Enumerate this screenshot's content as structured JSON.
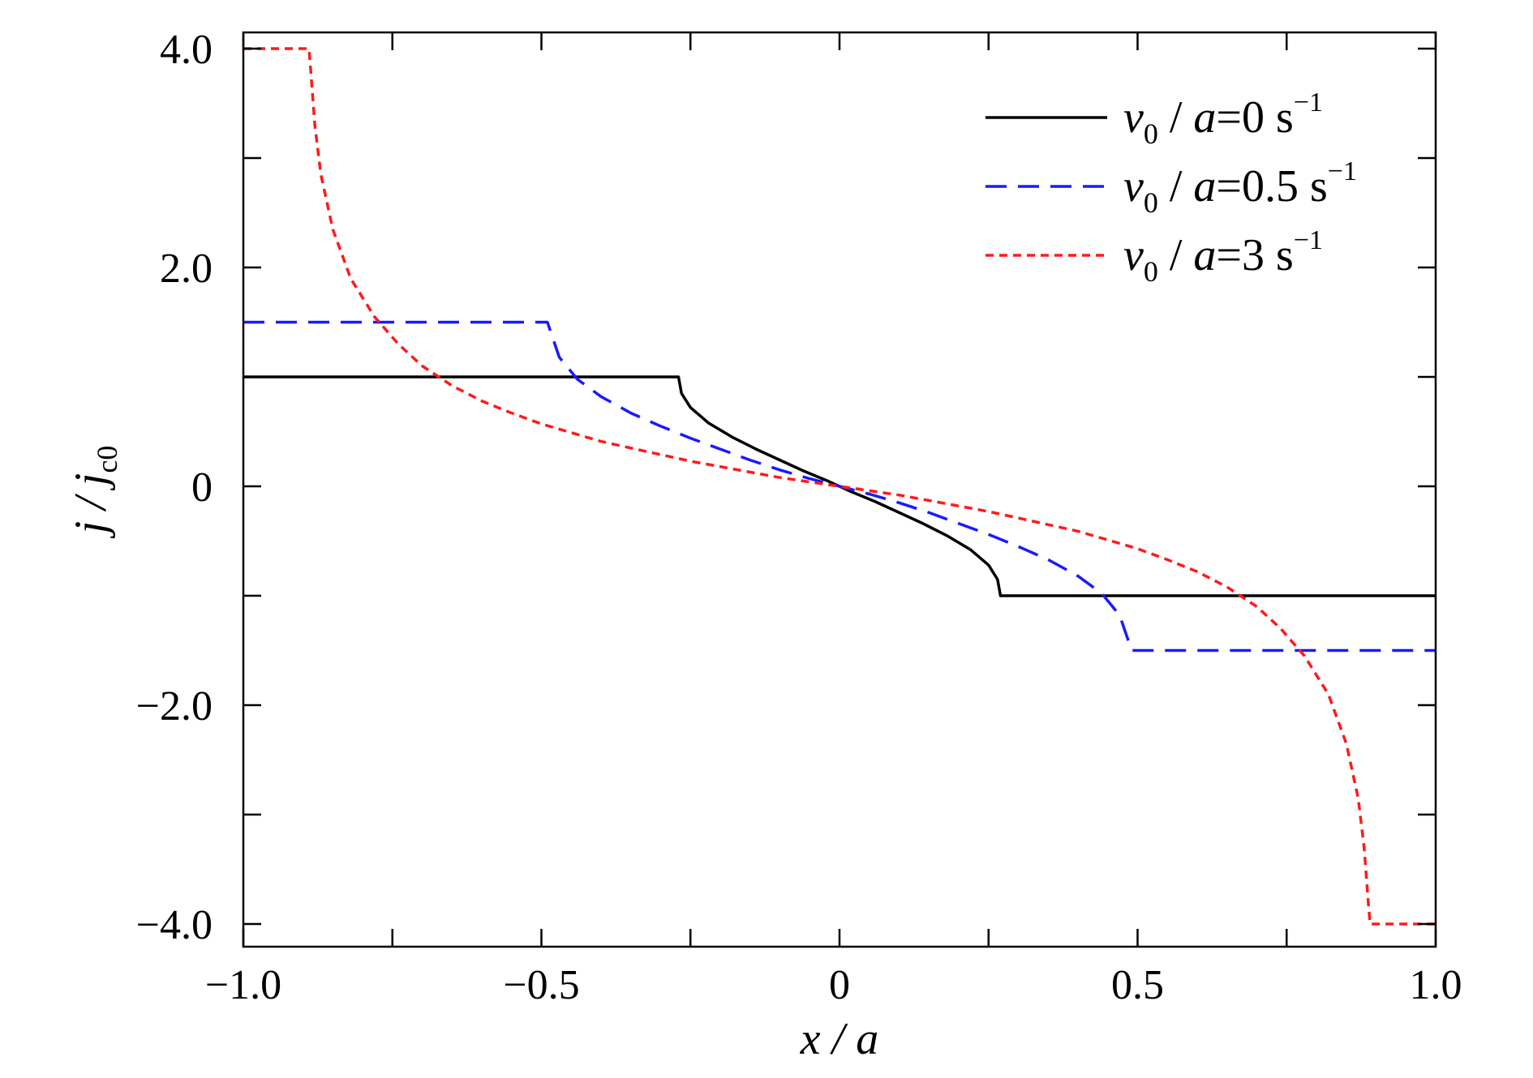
{
  "chart_data": {
    "type": "line",
    "xlabel": "x / a",
    "ylabel": "j / j",
    "ylabel_sub": "c0",
    "xlim": [
      -1.0,
      1.0
    ],
    "ylim": [
      -4.2,
      4.0
    ],
    "xticks": [
      {
        "value": -1.0,
        "label": "−1.0"
      },
      {
        "value": -0.5,
        "label": "−0.5"
      },
      {
        "value": 0,
        "label": "0"
      },
      {
        "value": 0.5,
        "label": "0.5"
      },
      {
        "value": 1.0,
        "label": "1.0"
      }
    ],
    "yticks": [
      {
        "value": 4.0,
        "label": "4.0"
      },
      {
        "value": 2.0,
        "label": "2.0"
      },
      {
        "value": 0,
        "label": "0"
      },
      {
        "value": -2.0,
        "label": "−2.0"
      },
      {
        "value": -4.0,
        "label": "−4.0"
      }
    ],
    "xminor": [
      -0.75,
      -0.25,
      0.25,
      0.75
    ],
    "yminor": [
      3.0,
      1.0,
      -1.0,
      -3.0
    ],
    "grid": false,
    "legend_position": "top-right",
    "series": [
      {
        "name": "v0/a = 0 s^-1",
        "color": "#000000",
        "style": "solid",
        "x": [
          -1.0,
          -0.27,
          -0.265,
          -0.25,
          -0.22,
          -0.18,
          -0.14,
          -0.1,
          -0.06,
          -0.02,
          0,
          0.02,
          0.06,
          0.1,
          0.14,
          0.18,
          0.22,
          0.25,
          0.265,
          0.27,
          1.0
        ],
        "y": [
          1.0,
          1.0,
          0.85,
          0.72,
          0.58,
          0.45,
          0.34,
          0.24,
          0.14,
          0.05,
          0,
          -0.05,
          -0.14,
          -0.24,
          -0.34,
          -0.45,
          -0.58,
          -0.72,
          -0.85,
          -1.0,
          -1.0
        ]
      },
      {
        "name": "v0/a = 0.5 s^-1",
        "color": "#1a1aff",
        "style": "dashed",
        "x": [
          -1.0,
          -0.49,
          -0.47,
          -0.44,
          -0.4,
          -0.35,
          -0.3,
          -0.25,
          -0.2,
          -0.15,
          -0.1,
          -0.05,
          0,
          0.05,
          0.1,
          0.15,
          0.2,
          0.25,
          0.3,
          0.35,
          0.4,
          0.44,
          0.47,
          0.49,
          1.0
        ],
        "y": [
          1.5,
          1.5,
          1.18,
          0.98,
          0.82,
          0.67,
          0.55,
          0.44,
          0.34,
          0.24,
          0.15,
          0.07,
          0,
          -0.07,
          -0.15,
          -0.24,
          -0.34,
          -0.44,
          -0.55,
          -0.67,
          -0.82,
          -0.98,
          -1.18,
          -1.5,
          -1.5
        ]
      },
      {
        "name": "v0/a = 3 s^-1",
        "color": "#ff1a1a",
        "style": "dotted",
        "x": [
          -1.0,
          -0.89,
          -0.887,
          -0.88,
          -0.87,
          -0.85,
          -0.82,
          -0.78,
          -0.74,
          -0.7,
          -0.65,
          -0.6,
          -0.55,
          -0.5,
          -0.45,
          -0.4,
          -0.35,
          -0.3,
          -0.25,
          -0.2,
          -0.15,
          -0.1,
          -0.05,
          0,
          0.05,
          0.1,
          0.15,
          0.2,
          0.25,
          0.3,
          0.35,
          0.4,
          0.45,
          0.5,
          0.55,
          0.6,
          0.65,
          0.7,
          0.74,
          0.78,
          0.82,
          0.85,
          0.87,
          0.88,
          0.887,
          0.89,
          1.0
        ],
        "y": [
          4.0,
          4.0,
          3.8,
          3.3,
          2.85,
          2.35,
          1.9,
          1.55,
          1.3,
          1.1,
          0.92,
          0.78,
          0.67,
          0.57,
          0.49,
          0.41,
          0.35,
          0.29,
          0.23,
          0.18,
          0.13,
          0.08,
          0.04,
          0,
          -0.04,
          -0.08,
          -0.13,
          -0.18,
          -0.23,
          -0.29,
          -0.35,
          -0.41,
          -0.49,
          -0.57,
          -0.67,
          -0.78,
          -0.92,
          -1.1,
          -1.3,
          -1.55,
          -1.9,
          -2.35,
          -2.85,
          -3.3,
          -3.8,
          -4.0,
          -4.0
        ]
      }
    ],
    "legend": [
      {
        "v": "v",
        "sub": "0",
        "mid": " / ",
        "a": "a",
        "eq": "=0 s",
        "sup": "−1"
      },
      {
        "v": "v",
        "sub": "0",
        "mid": " / ",
        "a": "a",
        "eq": "=0.5 s",
        "sup": "−1"
      },
      {
        "v": "v",
        "sub": "0",
        "mid": " / ",
        "a": "a",
        "eq": "=3 s",
        "sup": "−1"
      }
    ]
  }
}
